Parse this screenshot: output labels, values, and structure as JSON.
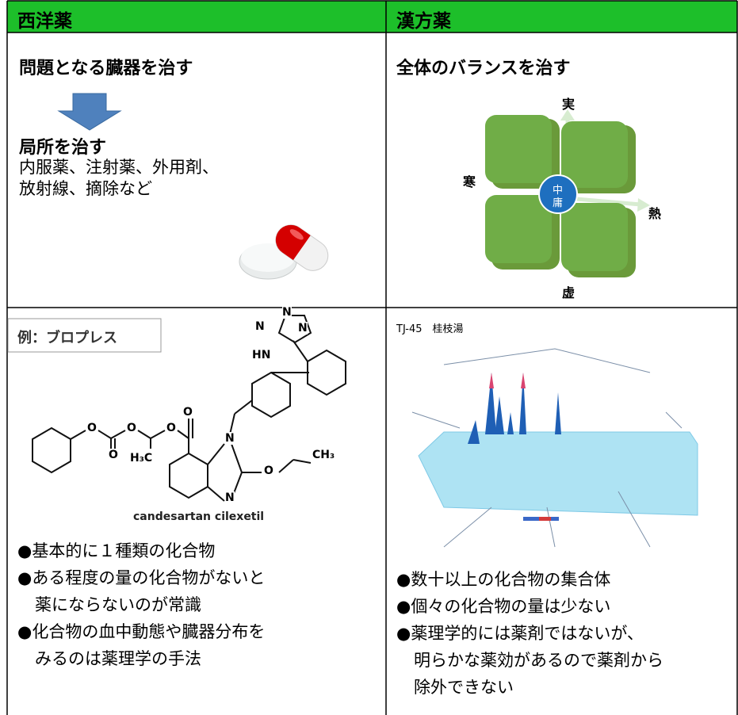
{
  "header": {
    "left": "西洋薬",
    "right": "漢方薬"
  },
  "western": {
    "heading": "問題となる臓器を治す",
    "subheading": "局所を治す",
    "lines": [
      "内服薬、注射薬、外用剤、",
      "放射線、摘除など"
    ]
  },
  "kampo": {
    "heading": "全体のバランスを治す",
    "diagram": {
      "top": "実",
      "left": "寒",
      "right": "熱",
      "bottom": "虚",
      "center": [
        "中",
        "庸"
      ]
    }
  },
  "western_example": {
    "label": "例：ブロプレス",
    "atoms": [
      "N",
      "N",
      "N",
      "HN",
      "O",
      "O",
      "O",
      "O",
      "O",
      "H₃C",
      "N",
      "N",
      "O",
      "CH₃"
    ],
    "compound": "candesartan cilexetil",
    "bullets": [
      [
        "●基本的に１種類の化合物"
      ],
      [
        "●ある程度の量の化合物がないと",
        "薬にならないのが常識"
      ],
      [
        "●化合物の血中動態や臓器分布を",
        "みるのは薬理学の手法"
      ]
    ]
  },
  "kampo_example": {
    "label": "TJ-45　桂枝湯",
    "bullets": [
      [
        "●数十以上の化合物の集合体"
      ],
      [
        "●個々の化合物の量は少ない"
      ],
      [
        "●薬理学的には薬剤ではないが、",
        "明らかな薬効があるので薬剤から",
        "除外できない"
      ]
    ]
  }
}
